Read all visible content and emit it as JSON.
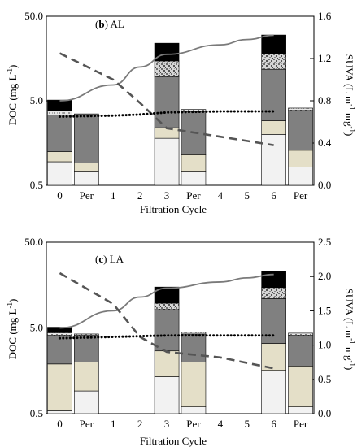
{
  "colors": {
    "bottom": "#f2f2f2",
    "beige": "#e4dfc8",
    "gray": "#808080",
    "speckle": "#c8c8c8",
    "black": "#000000",
    "solid_line": "#7a7a7a",
    "dashed_line": "#555555",
    "dotted_line": "#000000"
  },
  "chart_data": [
    {
      "type": "bar",
      "panel_letter": "b",
      "panel_name": "AL",
      "ylabel": "DOC (mg L",
      "ylabel_sup": "-1",
      "ylabel_end": ")",
      "y2label": "SUVA (L m",
      "y2label_sup1": "-1",
      "y2label_mid": " mg",
      "y2label_sup2": "-1",
      "y2label_end": ")",
      "xlabel": "Filtration Cycle",
      "y_scale": "log",
      "ylim": [
        0.5,
        50
      ],
      "y_ticks": [
        0.5,
        5.0,
        50.0
      ],
      "y_tick_labels": [
        "0.5",
        "5.0",
        "50.0"
      ],
      "y2lim": [
        0,
        1.6
      ],
      "y2_ticks": [
        0,
        0.4,
        0.8,
        1.2,
        1.6
      ],
      "y2_tick_labels": [
        "0.0",
        "0.4",
        "0.8",
        "1.2",
        "1.6"
      ],
      "categories": [
        "0",
        "Per",
        "1",
        "2",
        "3",
        "Per",
        "4",
        "5",
        "6",
        "Per"
      ],
      "stacks": [
        {
          "category": "0",
          "bounds": [
            0.5,
            0.95,
            1.25,
            3.4,
            3.8,
            5.1
          ],
          "pattern": "speckle-light"
        },
        {
          "category": "Per",
          "bounds": [
            0.5,
            0.72,
            0.92,
            3.5,
            3.5,
            3.5
          ],
          "pattern": "speckle-light"
        },
        {
          "category": "3",
          "bounds": [
            0.5,
            1.8,
            2.4,
            9.6,
            14.8,
            24.0
          ],
          "pattern": "speckle-dark"
        },
        {
          "category": "Per",
          "bounds": [
            0.5,
            0.72,
            1.15,
            3.75,
            3.95,
            3.95
          ],
          "pattern": "speckle-light"
        },
        {
          "category": "6",
          "bounds": [
            0.5,
            2.0,
            2.9,
            11.8,
            17.8,
            30.0
          ],
          "pattern": "speckle-dark"
        },
        {
          "category": "Per",
          "bounds": [
            0.5,
            0.82,
            1.3,
            3.85,
            4.1,
            4.1
          ],
          "pattern": "speckle-light"
        }
      ],
      "series": [
        {
          "style": "solid",
          "axis": "SUVA",
          "x": [
            0,
            1,
            2,
            3,
            4,
            5,
            6
          ],
          "values": [
            0.8,
            0.95,
            1.12,
            1.24,
            1.33,
            1.38,
            1.42
          ]
        },
        {
          "style": "dashed",
          "axis": "SUVA",
          "x": [
            0,
            1,
            2,
            3,
            4,
            5,
            6
          ],
          "values": [
            1.25,
            1.0,
            0.78,
            0.54,
            0.46,
            0.42,
            0.38
          ]
        },
        {
          "style": "dotted",
          "axis": "SUVA",
          "x": [
            0,
            1,
            2,
            3,
            4,
            5,
            6
          ],
          "values": [
            0.65,
            0.66,
            0.67,
            0.69,
            0.7,
            0.7,
            0.7
          ]
        }
      ]
    },
    {
      "type": "bar",
      "panel_letter": "c",
      "panel_name": "LA",
      "ylabel": "DOC (mg L",
      "ylabel_sup": "-1",
      "ylabel_end": ")",
      "y2label": "SUVA (L m",
      "y2label_sup1": "-1",
      "y2label_mid": " mg",
      "y2label_sup2": "-1",
      "y2label_end": ")",
      "xlabel": "Filtration Cycle",
      "y_scale": "log",
      "ylim": [
        0.5,
        50
      ],
      "y_ticks": [
        0.5,
        5.0,
        50.0
      ],
      "y_tick_labels": [
        "0.5",
        "5.0",
        "50.0"
      ],
      "y2lim": [
        0,
        2.5
      ],
      "y2_ticks": [
        0,
        0.5,
        1.0,
        1.5,
        2.0,
        2.5
      ],
      "y2_tick_labels": [
        "0.0",
        "0.5",
        "1.0",
        "1.5",
        "2.0",
        "2.5"
      ],
      "categories": [
        "0",
        "Per",
        "1",
        "2",
        "3",
        "Per",
        "4",
        "5",
        "6",
        "Per"
      ],
      "stacks": [
        {
          "category": "0",
          "bounds": [
            0.5,
            0.54,
            1.9,
            4.1,
            4.4,
            5.1
          ],
          "pattern": "speckle-light"
        },
        {
          "category": "Per",
          "bounds": [
            0.5,
            0.92,
            2.0,
            4.1,
            4.25,
            4.25
          ],
          "pattern": "speckle-light"
        },
        {
          "category": "3",
          "bounds": [
            0.5,
            1.35,
            2.7,
            8.2,
            9.7,
            15.0
          ],
          "pattern": "speckle-dark"
        },
        {
          "category": "Per",
          "bounds": [
            0.5,
            0.6,
            2.0,
            4.25,
            4.45,
            4.45
          ],
          "pattern": "speckle-light"
        },
        {
          "category": "6",
          "bounds": [
            0.5,
            1.6,
            3.3,
            11.0,
            14.8,
            23.0
          ],
          "pattern": "speckle-dark"
        },
        {
          "category": "Per",
          "bounds": [
            0.5,
            0.6,
            1.8,
            4.1,
            4.35,
            4.35
          ],
          "pattern": "speckle-light"
        }
      ],
      "series": [
        {
          "style": "solid",
          "axis": "SUVA",
          "x": [
            0,
            1,
            2,
            3,
            4,
            5,
            6
          ],
          "values": [
            1.25,
            1.5,
            1.7,
            1.83,
            1.92,
            1.98,
            2.03
          ]
        },
        {
          "style": "dashed",
          "axis": "SUVA",
          "x": [
            0,
            1,
            2,
            3,
            4,
            5,
            6
          ],
          "values": [
            2.05,
            1.6,
            1.12,
            0.9,
            0.82,
            0.74,
            0.66
          ]
        },
        {
          "style": "dotted",
          "axis": "SUVA",
          "x": [
            0,
            1,
            2,
            3,
            4,
            5,
            6
          ],
          "values": [
            1.1,
            1.12,
            1.13,
            1.14,
            1.14,
            1.14,
            1.14
          ]
        }
      ]
    }
  ]
}
